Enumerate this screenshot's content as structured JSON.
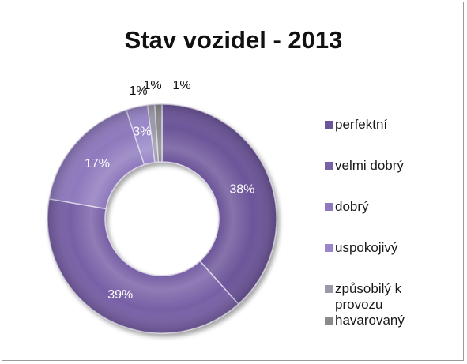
{
  "chart_data": {
    "type": "pie",
    "variant": "doughnut",
    "title": "Stav vozidel - 2013",
    "categories": [
      "perfektní",
      "velmi dobrý",
      "dobrý",
      "uspokojivý",
      "způsobilý k provozu",
      "havarovaný"
    ],
    "values": [
      38,
      39,
      17,
      3,
      1,
      1
    ],
    "labels": [
      "38%",
      "39%",
      "17%",
      "3%",
      "1%",
      "1%"
    ],
    "colors": [
      "#6c5499",
      "#7861a6",
      "#8e79bd",
      "#9886c8",
      "#9a9aaa",
      "#8a8a8a"
    ],
    "legend_position": "right",
    "label_color_inside": "#ffffff",
    "label_color_outside": "#111111"
  }
}
